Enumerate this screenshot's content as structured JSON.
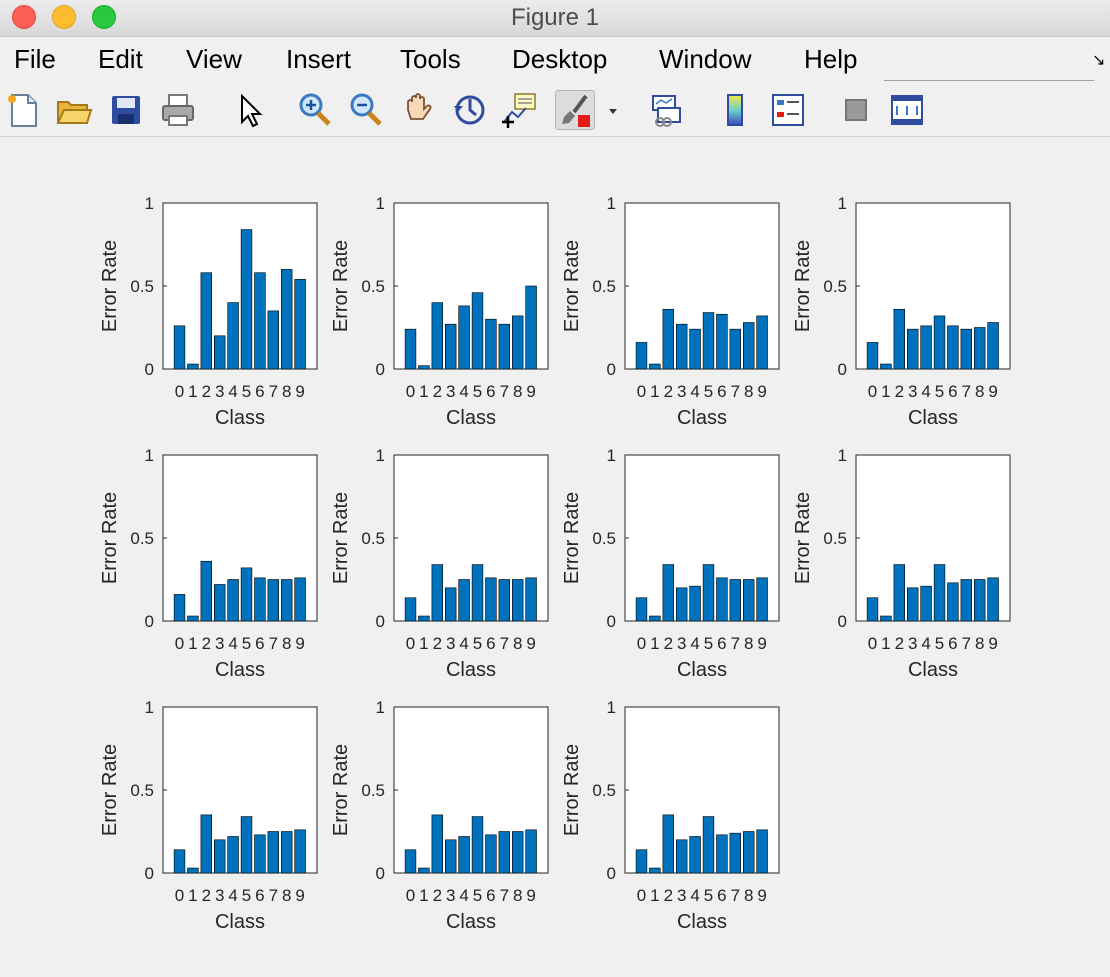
{
  "window": {
    "title": "Figure 1"
  },
  "menu": [
    "File",
    "Edit",
    "View",
    "Insert",
    "Tools",
    "Desktop",
    "Window",
    "Help"
  ],
  "toolbar": [
    "new-figure-icon",
    "open-file-icon",
    "save-icon",
    "print-icon",
    "pointer-icon",
    "zoom-in-icon",
    "zoom-out-icon",
    "pan-icon",
    "rotate-3d-icon",
    "data-cursor-icon",
    "brush-icon",
    "link-plot-icon",
    "colorbar-icon",
    "legend-icon",
    "hide-plot-tools-icon",
    "show-plot-tools-icon"
  ],
  "colors": {
    "bar": "#0072bd",
    "bar_edge": "#000000",
    "axes_bg": "#ffffff",
    "figure_bg": "#f0f0f0"
  },
  "chart_data": [
    {
      "type": "bar",
      "categories": [
        "0",
        "1",
        "2",
        "3",
        "4",
        "5",
        "6",
        "7",
        "8",
        "9"
      ],
      "values": [
        0.26,
        0.03,
        0.58,
        0.2,
        0.4,
        0.84,
        0.58,
        0.35,
        0.6,
        0.54
      ],
      "xlabel": "Class",
      "ylabel": "Error Rate",
      "ylim": [
        0,
        1
      ],
      "yticks": [
        "0",
        "0.5",
        "1"
      ]
    },
    {
      "type": "bar",
      "categories": [
        "0",
        "1",
        "2",
        "3",
        "4",
        "5",
        "6",
        "7",
        "8",
        "9"
      ],
      "values": [
        0.24,
        0.02,
        0.4,
        0.27,
        0.38,
        0.46,
        0.3,
        0.27,
        0.32,
        0.5
      ],
      "xlabel": "Class",
      "ylabel": "Error Rate",
      "ylim": [
        0,
        1
      ],
      "yticks": [
        "0",
        "0.5",
        "1"
      ]
    },
    {
      "type": "bar",
      "categories": [
        "0",
        "1",
        "2",
        "3",
        "4",
        "5",
        "6",
        "7",
        "8",
        "9"
      ],
      "values": [
        0.16,
        0.03,
        0.36,
        0.27,
        0.24,
        0.34,
        0.33,
        0.24,
        0.28,
        0.32
      ],
      "xlabel": "Class",
      "ylabel": "Error Rate",
      "ylim": [
        0,
        1
      ],
      "yticks": [
        "0",
        "0.5",
        "1"
      ]
    },
    {
      "type": "bar",
      "categories": [
        "0",
        "1",
        "2",
        "3",
        "4",
        "5",
        "6",
        "7",
        "8",
        "9"
      ],
      "values": [
        0.16,
        0.03,
        0.36,
        0.24,
        0.26,
        0.32,
        0.26,
        0.24,
        0.25,
        0.28
      ],
      "xlabel": "Class",
      "ylabel": "Error Rate",
      "ylim": [
        0,
        1
      ],
      "yticks": [
        "0",
        "0.5",
        "1"
      ]
    },
    {
      "type": "bar",
      "categories": [
        "0",
        "1",
        "2",
        "3",
        "4",
        "5",
        "6",
        "7",
        "8",
        "9"
      ],
      "values": [
        0.16,
        0.03,
        0.36,
        0.22,
        0.25,
        0.32,
        0.26,
        0.25,
        0.25,
        0.26
      ],
      "xlabel": "Class",
      "ylabel": "Error Rate",
      "ylim": [
        0,
        1
      ],
      "yticks": [
        "0",
        "0.5",
        "1"
      ]
    },
    {
      "type": "bar",
      "categories": [
        "0",
        "1",
        "2",
        "3",
        "4",
        "5",
        "6",
        "7",
        "8",
        "9"
      ],
      "values": [
        0.14,
        0.03,
        0.34,
        0.2,
        0.25,
        0.34,
        0.26,
        0.25,
        0.25,
        0.26
      ],
      "xlabel": "Class",
      "ylabel": "Error Rate",
      "ylim": [
        0,
        1
      ],
      "yticks": [
        "0",
        "0.5",
        "1"
      ]
    },
    {
      "type": "bar",
      "categories": [
        "0",
        "1",
        "2",
        "3",
        "4",
        "5",
        "6",
        "7",
        "8",
        "9"
      ],
      "values": [
        0.14,
        0.03,
        0.34,
        0.2,
        0.21,
        0.34,
        0.26,
        0.25,
        0.25,
        0.26
      ],
      "xlabel": "Class",
      "ylabel": "Error Rate",
      "ylim": [
        0,
        1
      ],
      "yticks": [
        "0",
        "0.5",
        "1"
      ]
    },
    {
      "type": "bar",
      "categories": [
        "0",
        "1",
        "2",
        "3",
        "4",
        "5",
        "6",
        "7",
        "8",
        "9"
      ],
      "values": [
        0.14,
        0.03,
        0.34,
        0.2,
        0.21,
        0.34,
        0.23,
        0.25,
        0.25,
        0.26
      ],
      "xlabel": "Class",
      "ylabel": "Error Rate",
      "ylim": [
        0,
        1
      ],
      "yticks": [
        "0",
        "0.5",
        "1"
      ]
    },
    {
      "type": "bar",
      "categories": [
        "0",
        "1",
        "2",
        "3",
        "4",
        "5",
        "6",
        "7",
        "8",
        "9"
      ],
      "values": [
        0.14,
        0.03,
        0.35,
        0.2,
        0.22,
        0.34,
        0.23,
        0.25,
        0.25,
        0.26
      ],
      "xlabel": "Class",
      "ylabel": "Error Rate",
      "ylim": [
        0,
        1
      ],
      "yticks": [
        "0",
        "0.5",
        "1"
      ]
    },
    {
      "type": "bar",
      "categories": [
        "0",
        "1",
        "2",
        "3",
        "4",
        "5",
        "6",
        "7",
        "8",
        "9"
      ],
      "values": [
        0.14,
        0.03,
        0.35,
        0.2,
        0.22,
        0.34,
        0.23,
        0.25,
        0.25,
        0.26
      ],
      "xlabel": "Class",
      "ylabel": "Error Rate",
      "ylim": [
        0,
        1
      ],
      "yticks": [
        "0",
        "0.5",
        "1"
      ]
    },
    {
      "type": "bar",
      "categories": [
        "0",
        "1",
        "2",
        "3",
        "4",
        "5",
        "6",
        "7",
        "8",
        "9"
      ],
      "values": [
        0.14,
        0.03,
        0.35,
        0.2,
        0.22,
        0.34,
        0.23,
        0.24,
        0.25,
        0.26
      ],
      "xlabel": "Class",
      "ylabel": "Error Rate",
      "ylim": [
        0,
        1
      ],
      "yticks": [
        "0",
        "0.5",
        "1"
      ]
    }
  ]
}
